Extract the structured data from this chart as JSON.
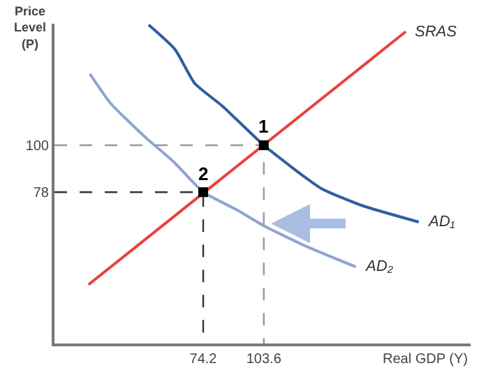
{
  "chart_data": {
    "type": "line",
    "xlabel": "Real GDP (Y)",
    "ylabel": "Price Level (P)",
    "xlim": [
      2,
      204
    ],
    "ylim": [
      7,
      157
    ],
    "xticks": [
      74.2,
      103.6
    ],
    "yticks": [
      78,
      100
    ],
    "legend": false,
    "marker": "none",
    "series": [
      {
        "name": "SRAS",
        "color": "#e8413c",
        "x": [
          18.5,
          172.5
        ],
        "values": [
          34.6,
          153.3
        ]
      },
      {
        "name": "AD₁",
        "color": "#2d5fa0",
        "x": [
          47.7,
          60.5,
          70.1,
          83.7,
          103.6,
          131.2,
          151.6,
          178.8
        ],
        "values": [
          156.5,
          145,
          129,
          118.2,
          100,
          79.9,
          71.6,
          64
        ]
      },
      {
        "name": "AD₂",
        "color": "#8ea4d2",
        "x": [
          19.2,
          29.4,
          46.4,
          60.1,
          74.2,
          90.5,
          104,
          124.4,
          148.2
        ],
        "values": [
          133.5,
          119.5,
          103.5,
          92,
          78,
          69.7,
          62,
          52.5,
          43
        ]
      },
      {
        "type": "line",
        "line_style": "dashed",
        "color": "#999999",
        "x": [
          2,
          103.6,
          103.6
        ],
        "values": [
          100,
          100,
          7
        ]
      },
      {
        "type": "line",
        "line_style": "dashed",
        "color": "#333333",
        "x": [
          2,
          74.2,
          74.2
        ],
        "values": [
          78,
          78,
          7
        ]
      },
      {
        "type": "scatter",
        "marker": "square",
        "color": "#000000",
        "x": [
          103.6,
          74.2
        ],
        "values": [
          100,
          78
        ]
      }
    ],
    "annotations": [
      {
        "text": "1",
        "x": 103.6,
        "y": 100
      },
      {
        "text": "2",
        "x": 74.2,
        "y": 78
      }
    ]
  }
}
